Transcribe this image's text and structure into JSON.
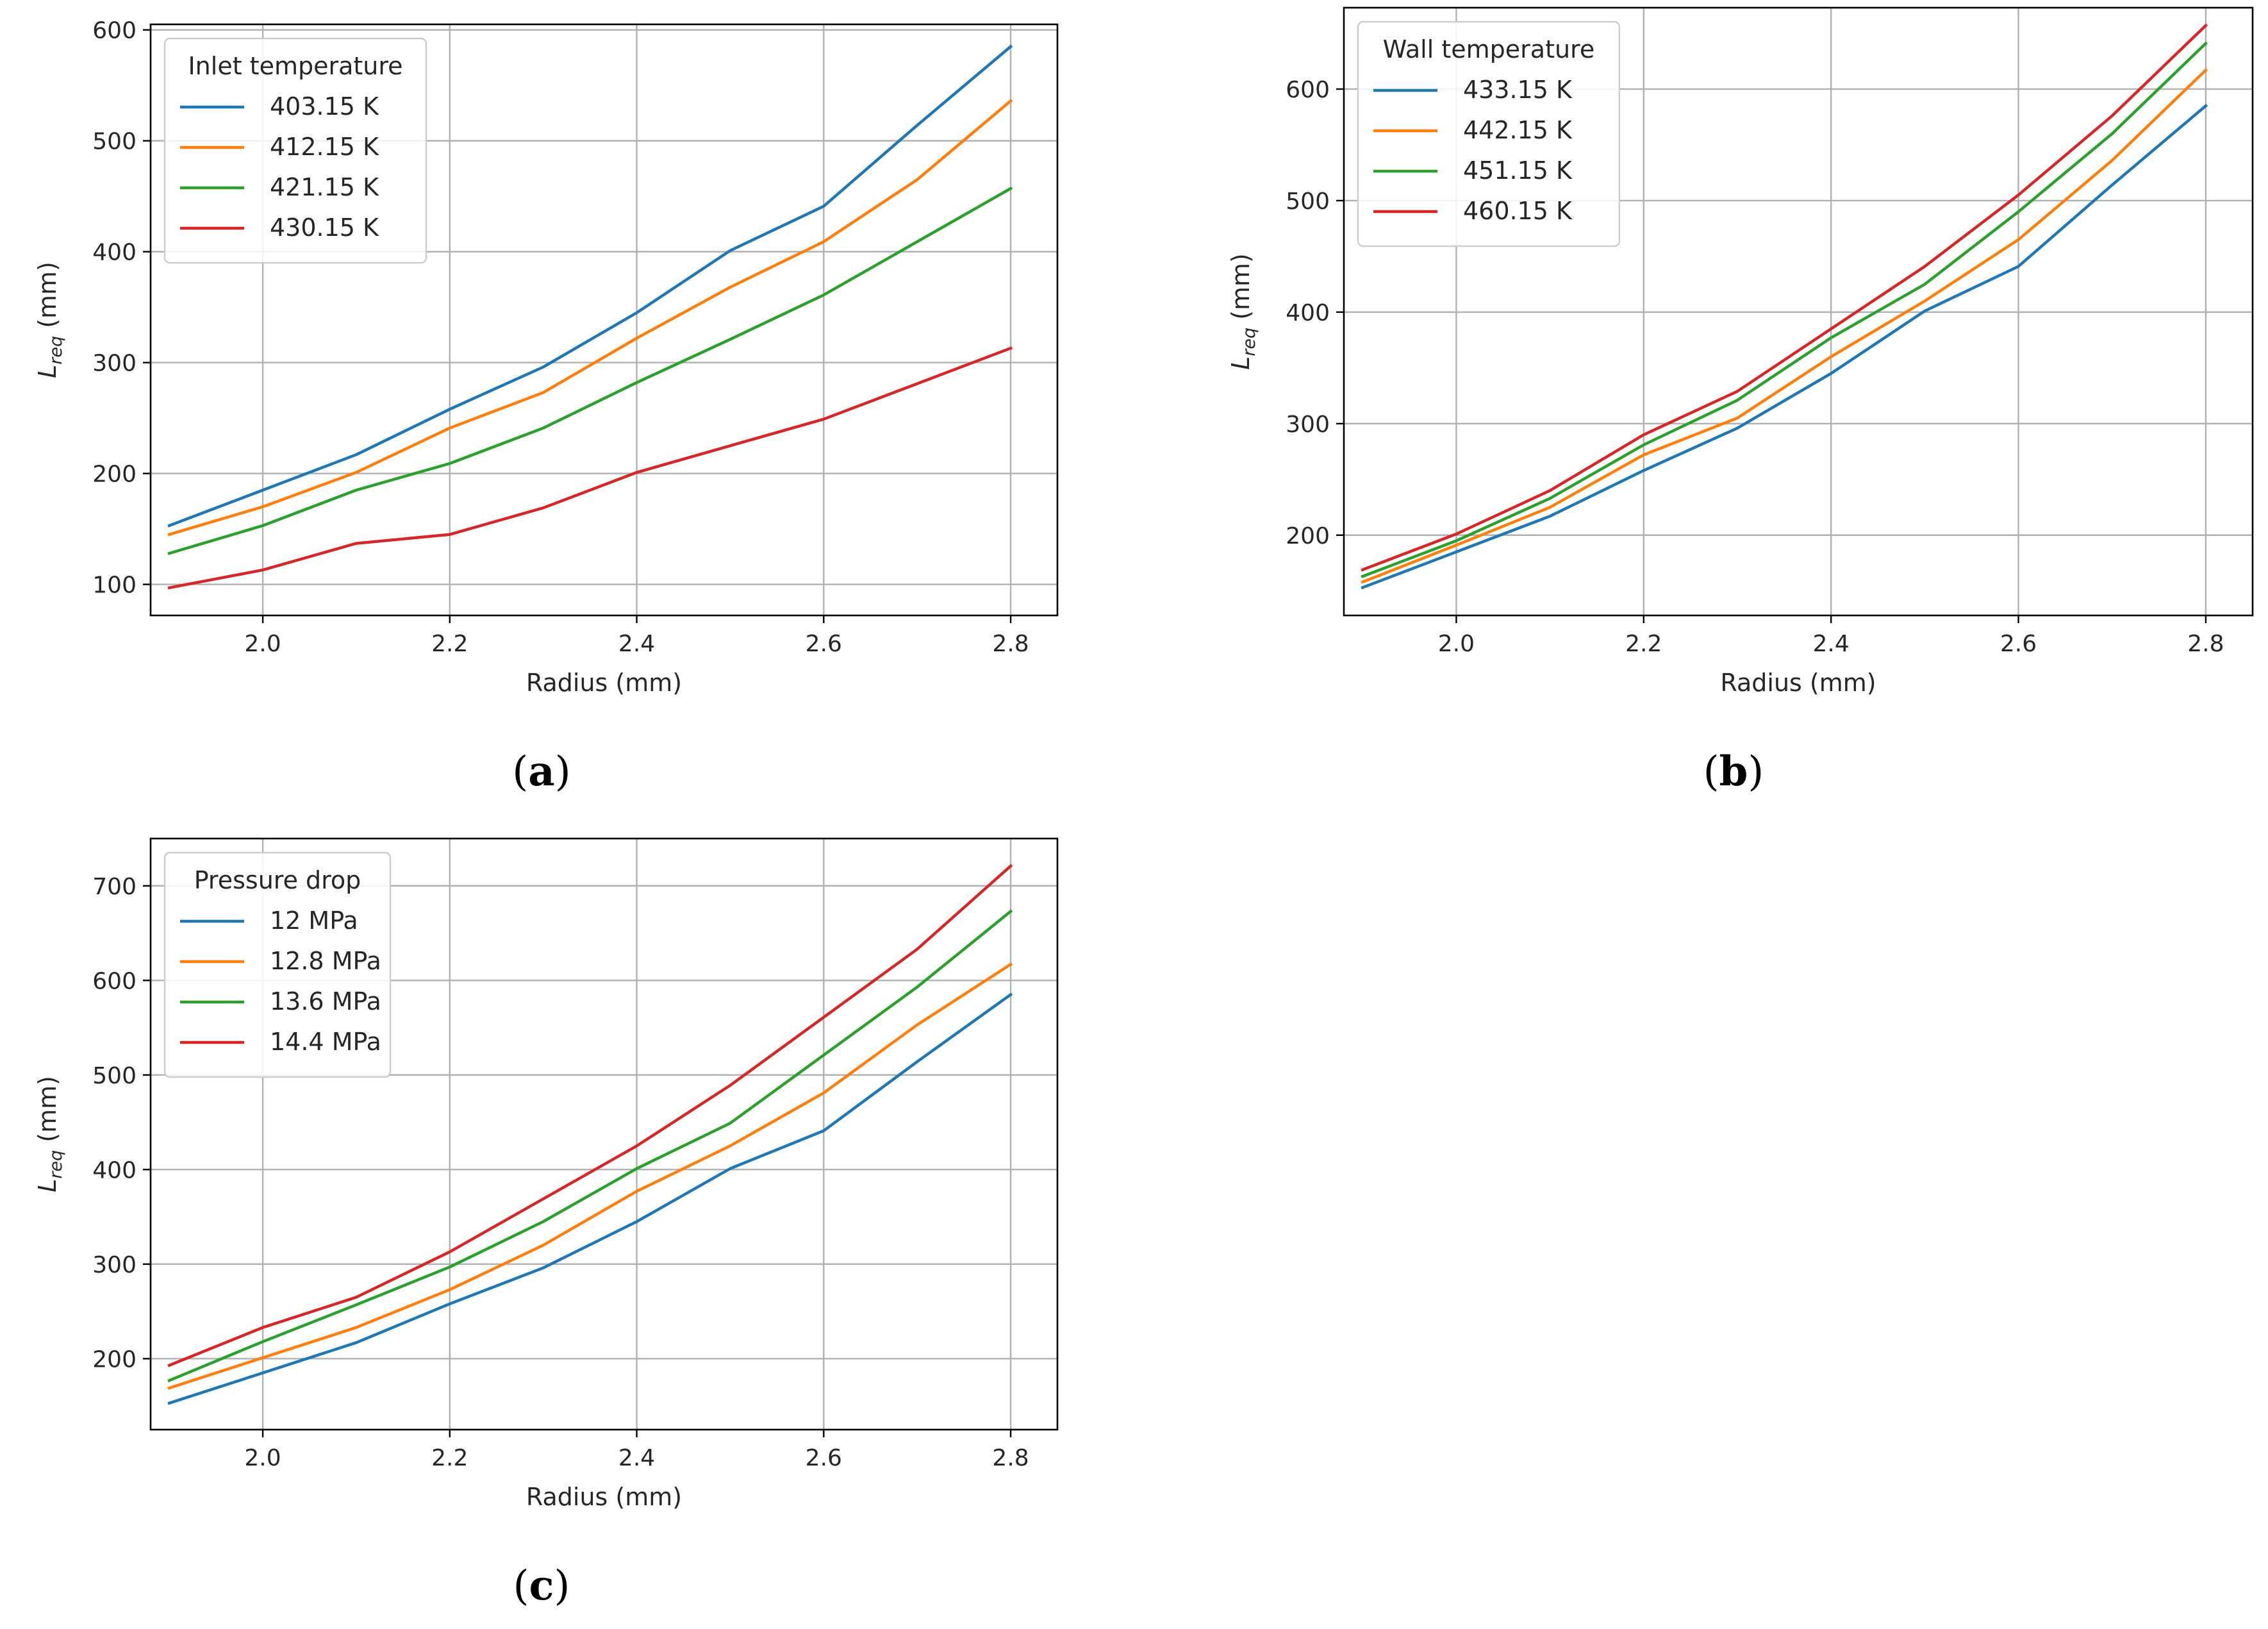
{
  "figure": {
    "panels": [
      "(a)",
      "(b)",
      "(c)"
    ]
  },
  "chart_data": [
    {
      "id": "a",
      "panel_label": "(a)",
      "panel_letter": "a",
      "type": "line",
      "xlabel": "Radius (mm)",
      "ylabel_main": "L",
      "ylabel_sub": "req",
      "ylabel_unit": " (mm)",
      "xlim": [
        1.88,
        2.85
      ],
      "ylim": [
        72,
        605
      ],
      "xticks": [
        2.0,
        2.2,
        2.4,
        2.6,
        2.8
      ],
      "xtick_labels": [
        "2.0",
        "2.2",
        "2.4",
        "2.6",
        "2.8"
      ],
      "yticks": [
        100,
        200,
        300,
        400,
        500,
        600
      ],
      "ytick_labels": [
        "100",
        "200",
        "300",
        "400",
        "500",
        "600"
      ],
      "grid": true,
      "legend_position": "top-left",
      "legend_title": "Inlet temperature",
      "x": [
        1.9,
        2.0,
        2.1,
        2.2,
        2.3,
        2.4,
        2.5,
        2.6,
        2.7,
        2.8
      ],
      "series": [
        {
          "name": "403.15 K",
          "color": "#1f77b4",
          "values": [
            153,
            185,
            217,
            258,
            296,
            345,
            401,
            441,
            514,
            585
          ]
        },
        {
          "name": "412.15 K",
          "color": "#ff7f0e",
          "values": [
            145,
            170,
            201,
            241,
            273,
            322,
            368,
            409,
            465,
            536
          ]
        },
        {
          "name": "421.15 K",
          "color": "#2ca02c",
          "values": [
            128,
            153,
            185,
            209,
            241,
            282,
            321,
            361,
            409,
            457
          ]
        },
        {
          "name": "430.15 K",
          "color": "#d62728",
          "values": [
            97,
            113,
            137,
            145,
            169,
            201,
            225,
            249,
            281,
            313
          ]
        }
      ]
    },
    {
      "id": "b",
      "panel_label": "(b)",
      "panel_letter": "b",
      "type": "line",
      "xlabel": "Radius (mm)",
      "ylabel_main": "L",
      "ylabel_sub": "req",
      "ylabel_unit": " (mm)",
      "xlim": [
        1.88,
        2.85
      ],
      "ylim": [
        128,
        673
      ],
      "xticks": [
        2.0,
        2.2,
        2.4,
        2.6,
        2.8
      ],
      "xtick_labels": [
        "2.0",
        "2.2",
        "2.4",
        "2.6",
        "2.8"
      ],
      "yticks": [
        200,
        300,
        400,
        500,
        600
      ],
      "ytick_labels": [
        "200",
        "300",
        "400",
        "500",
        "600"
      ],
      "grid": true,
      "legend_position": "top-left",
      "legend_title": "Wall temperature",
      "x": [
        1.9,
        2.0,
        2.1,
        2.2,
        2.3,
        2.4,
        2.5,
        2.6,
        2.7,
        2.8
      ],
      "series": [
        {
          "name": "433.15 K",
          "color": "#1f77b4",
          "values": [
            153,
            185,
            217,
            258,
            296,
            345,
            401,
            441,
            514,
            585
          ]
        },
        {
          "name": "442.15 K",
          "color": "#ff7f0e",
          "values": [
            158,
            191,
            225,
            272,
            305,
            360,
            410,
            465,
            536,
            617
          ]
        },
        {
          "name": "451.15 K",
          "color": "#2ca02c",
          "values": [
            163,
            195,
            233,
            281,
            321,
            377,
            425,
            490,
            560,
            641
          ]
        },
        {
          "name": "460.15 K",
          "color": "#d62728",
          "values": [
            169,
            201,
            240,
            290,
            329,
            385,
            441,
            505,
            576,
            657
          ]
        }
      ]
    },
    {
      "id": "c",
      "panel_label": "(c)",
      "panel_letter": "c",
      "type": "line",
      "xlabel": "Radius (mm)",
      "ylabel_main": "L",
      "ylabel_sub": "req",
      "ylabel_unit": " (mm)",
      "xlim": [
        1.88,
        2.85
      ],
      "ylim": [
        125,
        750
      ],
      "xticks": [
        2.0,
        2.2,
        2.4,
        2.6,
        2.8
      ],
      "xtick_labels": [
        "2.0",
        "2.2",
        "2.4",
        "2.6",
        "2.8"
      ],
      "yticks": [
        200,
        300,
        400,
        500,
        600,
        700
      ],
      "ytick_labels": [
        "200",
        "300",
        "400",
        "500",
        "600",
        "700"
      ],
      "grid": true,
      "legend_position": "top-left",
      "legend_title": "Pressure drop",
      "x": [
        1.9,
        2.0,
        2.1,
        2.2,
        2.3,
        2.4,
        2.5,
        2.6,
        2.7,
        2.8
      ],
      "series": [
        {
          "name": "12 MPa",
          "color": "#1f77b4",
          "values": [
            153,
            185,
            217,
            258,
            296,
            345,
            401,
            441,
            514,
            585
          ]
        },
        {
          "name": "12.8 MPa",
          "color": "#ff7f0e",
          "values": [
            169,
            201,
            233,
            273,
            320,
            377,
            425,
            481,
            553,
            617
          ]
        },
        {
          "name": "13.6 MPa",
          "color": "#2ca02c",
          "values": [
            177,
            218,
            257,
            297,
            345,
            401,
            449,
            521,
            593,
            673
          ]
        },
        {
          "name": "14.4 MPa",
          "color": "#d62728",
          "values": [
            193,
            233,
            265,
            313,
            369,
            425,
            489,
            561,
            633,
            721
          ]
        }
      ]
    }
  ]
}
